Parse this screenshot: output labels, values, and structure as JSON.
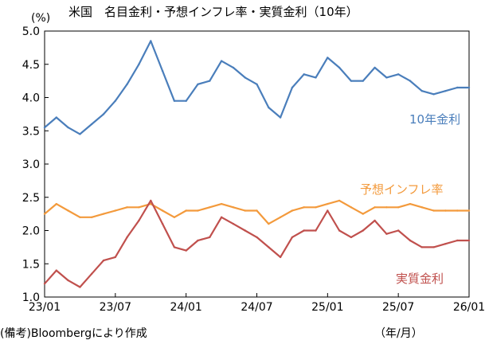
{
  "chart_data": {
    "type": "line",
    "title": "米国　名目金利・予想インフレ率・実質金利（10年）",
    "yunit": "(%)",
    "xunit": "（年/月）",
    "source": "(備考)Bloombergにより作成",
    "ylim": [
      1.0,
      5.0
    ],
    "yticks": [
      "1.0",
      "1.5",
      "2.0",
      "2.5",
      "3.0",
      "3.5",
      "4.0",
      "4.5",
      "5.0"
    ],
    "xticks": [
      "23/01",
      "23/07",
      "24/01",
      "24/07",
      "25/01",
      "25/07",
      "26/01"
    ],
    "x": [
      "23/01",
      "23/02",
      "23/03",
      "23/04",
      "23/05",
      "23/06",
      "23/07",
      "23/08",
      "23/09",
      "23/10",
      "23/11",
      "23/12",
      "24/01",
      "24/02",
      "24/03",
      "24/04",
      "24/05",
      "24/06",
      "24/07",
      "24/08",
      "24/09",
      "24/10",
      "24/11",
      "24/12",
      "25/01",
      "25/02",
      "25/03",
      "25/04",
      "25/05",
      "25/06",
      "25/07",
      "25/08",
      "25/09",
      "25/10",
      "25/11",
      "25/12",
      "26/01"
    ],
    "series": [
      {
        "name": "10年金利",
        "color": "#4a7ebb",
        "values": [
          3.55,
          3.7,
          3.55,
          3.45,
          3.6,
          3.75,
          3.95,
          4.2,
          4.5,
          4.85,
          4.4,
          3.95,
          3.95,
          4.2,
          4.25,
          4.55,
          4.45,
          4.3,
          4.2,
          3.85,
          3.7,
          4.15,
          4.35,
          4.3,
          4.6,
          4.45,
          4.25,
          4.25,
          4.45,
          4.3,
          4.35,
          4.25,
          4.1,
          4.05,
          4.1,
          4.15,
          4.15
        ]
      },
      {
        "name": "予想インフレ率",
        "color": "#f39a3c",
        "values": [
          2.25,
          2.4,
          2.3,
          2.2,
          2.2,
          2.25,
          2.3,
          2.35,
          2.35,
          2.4,
          2.3,
          2.2,
          2.3,
          2.3,
          2.35,
          2.4,
          2.35,
          2.3,
          2.3,
          2.1,
          2.2,
          2.3,
          2.35,
          2.35,
          2.4,
          2.45,
          2.35,
          2.25,
          2.35,
          2.35,
          2.35,
          2.4,
          2.35,
          2.3,
          2.3,
          2.3,
          2.3
        ]
      },
      {
        "name": "実質金利",
        "color": "#c0504d",
        "values": [
          1.2,
          1.4,
          1.25,
          1.15,
          1.35,
          1.55,
          1.6,
          1.9,
          2.15,
          2.45,
          2.1,
          1.75,
          1.7,
          1.85,
          1.9,
          2.2,
          2.1,
          2.0,
          1.9,
          1.75,
          1.6,
          1.9,
          2.0,
          2.0,
          2.3,
          2.0,
          1.9,
          2.0,
          2.15,
          1.95,
          2.0,
          1.85,
          1.75,
          1.75,
          1.8,
          1.85,
          1.85
        ]
      }
    ]
  }
}
